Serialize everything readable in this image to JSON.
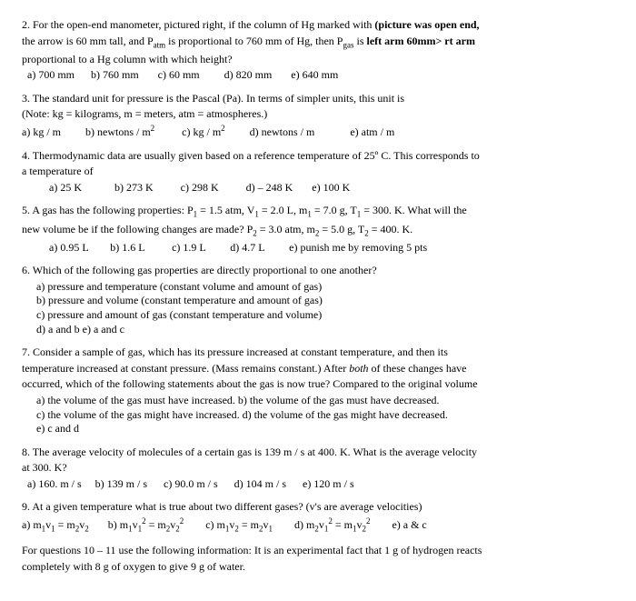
{
  "q2": {
    "line1_pre": "2. For the open-end manometer, pictured right, if the column of Hg marked with  ",
    "line1_bold": "(picture was open end,",
    "line2_pre": "the arrow is 60 mm tall, and P",
    "line2_sub1": "atm",
    "line2_mid": " is proportional to 760 mm of Hg, then P",
    "line2_sub2": "gas",
    "line2_post": " is   ",
    "line2_bold": "left arm 60mm> rt arm",
    "line3": "proportional to a Hg column with which height?",
    "opts": "  a) 700 mm      b) 760 mm       c) 60 mm         d) 820 mm       e) 640 mm"
  },
  "q3": {
    "line1": "3. The standard unit for pressure is the Pascal (Pa). In terms of simpler units, this unit is",
    "line2": "(Note: kg = kilograms, m = meters, atm = atmospheres.)",
    "opt_a": "a) kg / m         b) newtons / m",
    "opt_c": "          c) kg / m",
    "opt_d": "         d) newtons / m             e) atm / m"
  },
  "q4": {
    "line1": "4. Thermodynamic data are usually given based on a reference temperature of 25º C. This corresponds to",
    "line2": "a temperature of",
    "opts": "          a) 25 K            b) 273 K          c) 298 K          d) – 248 K       e) 100 K"
  },
  "q5": {
    "line1_pre": "5. A gas has the following properties: P",
    "line1_a": " = 1.5 atm, V",
    "line1_b": " = 2.0 L, m",
    "line1_c": " = 7.0 g, T",
    "line1_d": " = 300. K. What will the",
    "line2_pre": "new volume be if the following changes are made? P",
    "line2_a": " = 3.0 atm, m",
    "line2_b": " = 5.0 g, T",
    "line2_c": " = 400. K.",
    "opts": "          a) 0.95 L        b) 1.6 L          c) 1.9 L         d) 4.7 L         e) punish me by removing 5 pts"
  },
  "q6": {
    "line1": "6. Which of the following gas properties are directly proportional to one another?",
    "opt_a": "a) pressure and temperature (constant volume and amount of gas)",
    "opt_b": "b) pressure and volume (constant temperature and amount of gas)",
    "opt_c": "c) pressure and amount of gas (constant temperature and volume)",
    "opt_d": "d) a and b      e) a and c"
  },
  "q7": {
    "line1": "7.  Consider a sample of gas, which has its pressure increased at constant temperature, and then its",
    "line2_pre": "temperature increased at constant pressure. (Mass remains constant.) After ",
    "line2_i": "both",
    "line2_post": " of these changes have",
    "line3": "occurred, which of the following statements about the gas is now true? Compared to the original volume",
    "opt_ab": "a) the volume of the gas must have increased.           b) the volume of the gas must have decreased.",
    "opt_cd": "c) the volume of the gas might have increased.          d) the volume of the gas might have decreased.",
    "opt_e": "e) c and d"
  },
  "q8": {
    "line1": "8. The average velocity of molecules of a certain gas is 139 m / s at 400. K. What is the average velocity",
    "line2": "at 300. K?",
    "opts": "  a) 160. m / s     b) 139 m / s      c) 90.0 m / s      d) 104 m / s      e) 120 m / s"
  },
  "q9": {
    "line1": "9. At a given temperature what is true about two different gases?  (v's are average velocities)",
    "a_pre": "a) m",
    "a_mid": "v",
    "a_eq": " = m",
    "a_v2": "v",
    "b_pre": "       b) m",
    "b_v1": "v",
    "b_eq": " = m",
    "b_v2": "v",
    "c_pre": "        c) m",
    "c_v1": "v",
    "c_eq": " = m",
    "c_v2": "v",
    "d_pre": "        d) m",
    "d_v1": "v",
    "d_eq": " = m",
    "d_v2": "v",
    "e": "        e) a & c"
  },
  "footer": {
    "line1": "For questions 10 – 11 use the following information: It is an experimental fact that 1 g of hydrogen reacts",
    "line2": "completely with 8 g of oxygen to give 9 g of water."
  }
}
